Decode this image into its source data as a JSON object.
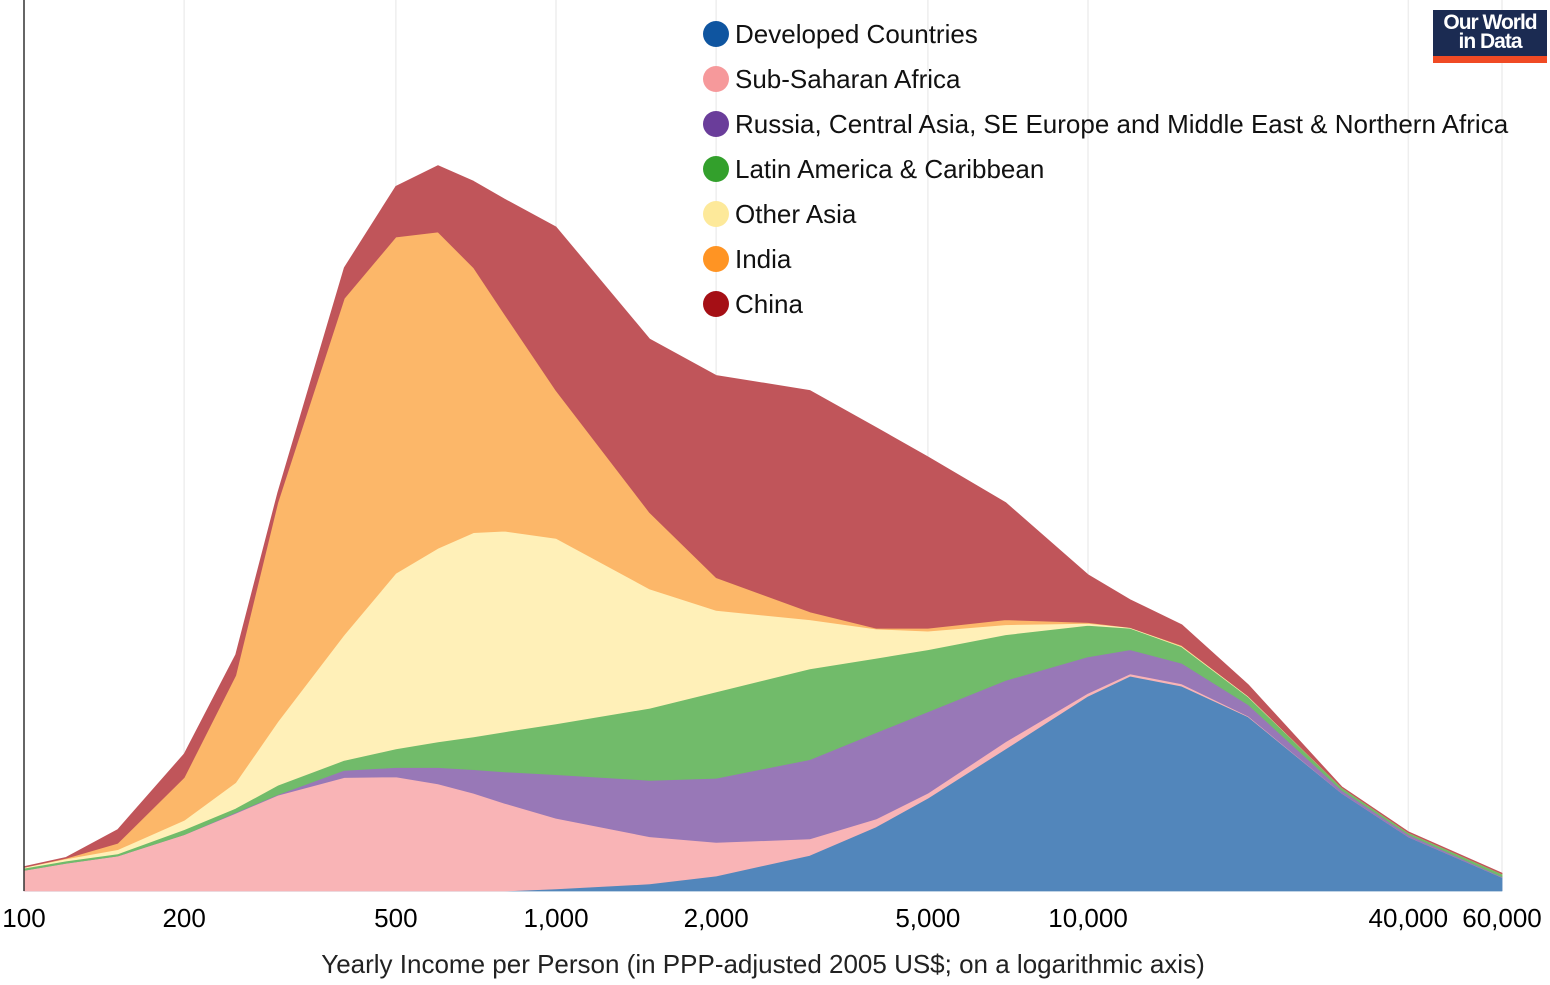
{
  "logo": {
    "line1": "Our World",
    "line2": "in Data"
  },
  "chart_data": {
    "type": "area",
    "stacked": true,
    "title": "",
    "xlabel": "Yearly Income per Person (in PPP-adjusted 2005 US$; on a logarithmic axis)",
    "ylabel": "",
    "x_scale": "log",
    "xlim": [
      100,
      60000
    ],
    "ylim": [
      0,
      102
    ],
    "y_units": "relative density (no axis printed)",
    "grid": "vertical",
    "legend_position": "top-right",
    "x_ticks": [
      {
        "value": 100,
        "label": "100"
      },
      {
        "value": 200,
        "label": "200"
      },
      {
        "value": 500,
        "label": "500"
      },
      {
        "value": 1000,
        "label": "1,000"
      },
      {
        "value": 2000,
        "label": "2,000"
      },
      {
        "value": 5000,
        "label": "5,000"
      },
      {
        "value": 10000,
        "label": "10,000"
      },
      {
        "value": 40000,
        "label": "40,000"
      },
      {
        "value": 60000,
        "label": "60,000"
      }
    ],
    "x": [
      100,
      120,
      150,
      200,
      250,
      300,
      400,
      500,
      600,
      700,
      800,
      1000,
      1500,
      2000,
      3000,
      4000,
      5000,
      7000,
      10000,
      12000,
      15000,
      20000,
      30000,
      40000,
      60000
    ],
    "series": [
      {
        "name": "Developed Countries",
        "color": "#5286bb",
        "legend_color": "#0f55a0",
        "values": [
          0,
          0,
          0,
          0,
          0,
          0,
          0,
          0,
          0,
          0,
          0,
          0.3,
          1.0,
          2.1,
          5.0,
          9.0,
          13.0,
          19.9,
          27.3,
          30.1,
          28.7,
          24.4,
          13.7,
          7.6,
          1.9
        ]
      },
      {
        "name": "Sub-Saharan Africa",
        "color": "#f9b4b6",
        "legend_color": "#f6999b",
        "values": [
          2.9,
          3.9,
          4.9,
          7.9,
          10.9,
          13.4,
          15.9,
          16.0,
          15.0,
          13.7,
          12.3,
          9.9,
          6.6,
          4.7,
          2.3,
          1.1,
          0.7,
          1.0,
          0.4,
          0.3,
          0.3,
          0.1,
          0,
          0,
          0
        ]
      },
      {
        "name": "Russia, Central Asia, SE Europe and Middle East & Northern Africa",
        "color": "#9878b7",
        "legend_color": "#6a3d9a",
        "values": [
          0,
          0,
          0,
          0,
          0.1,
          0.1,
          1.0,
          1.3,
          2.3,
          3.3,
          4.4,
          6.1,
          7.9,
          9.0,
          11.1,
          12.1,
          11.4,
          8.6,
          5.1,
          3.4,
          2.9,
          1.6,
          0.4,
          0.3,
          0.1
        ]
      },
      {
        "name": "Latin America & Caribbean",
        "color": "#71bb6a",
        "legend_color": "#33a02c",
        "values": [
          0.3,
          0.3,
          0.3,
          0.7,
          0.6,
          1.3,
          1.4,
          2.6,
          3.6,
          4.6,
          5.6,
          7.1,
          10.1,
          12.1,
          12.7,
          10.4,
          8.7,
          6.4,
          4.4,
          3.0,
          2.3,
          1.1,
          0.4,
          0.3,
          0.4
        ]
      },
      {
        "name": "Other Asia",
        "color": "#fff0b8",
        "legend_color": "#fde99a",
        "values": [
          0.1,
          0.3,
          0.6,
          1.3,
          3.6,
          8.9,
          17.6,
          24.6,
          27.1,
          28.6,
          28.1,
          26.0,
          16.7,
          11.4,
          6.9,
          4.1,
          2.6,
          1.4,
          0.3,
          0.1,
          0.1,
          0.1,
          0,
          0,
          0
        ]
      },
      {
        "name": "India",
        "color": "#fcb769",
        "legend_color": "#ff9423",
        "values": [
          0,
          0.1,
          0.9,
          6.0,
          15.0,
          30.7,
          47.1,
          47.1,
          44.3,
          37.1,
          30.4,
          20.7,
          10.7,
          4.6,
          1.1,
          0.1,
          0.4,
          0.7,
          0.1,
          0,
          0.1,
          0,
          0,
          0,
          0
        ]
      },
      {
        "name": "China",
        "color": "#c0555a",
        "legend_color": "#a50f15",
        "values": [
          0.1,
          0.1,
          1.9,
          3.3,
          2.9,
          1.4,
          4.3,
          7.1,
          9.3,
          12.1,
          16.1,
          22.9,
          24.3,
          28.3,
          31.0,
          28.1,
          24.0,
          16.4,
          6.7,
          3.9,
          2.9,
          1.6,
          0.1,
          0.1,
          0.1
        ]
      }
    ]
  }
}
